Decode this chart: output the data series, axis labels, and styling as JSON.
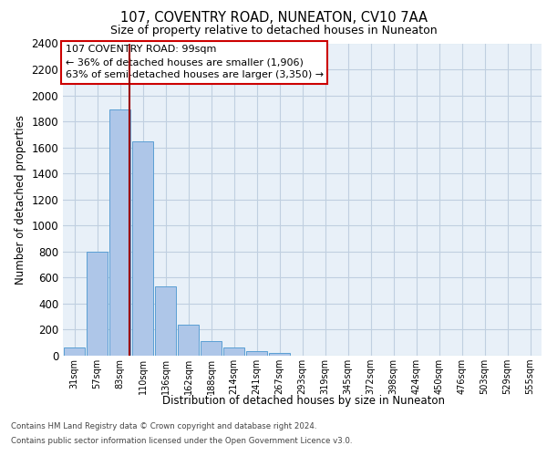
{
  "title": "107, COVENTRY ROAD, NUNEATON, CV10 7AA",
  "subtitle": "Size of property relative to detached houses in Nuneaton",
  "xlabel": "Distribution of detached houses by size in Nuneaton",
  "ylabel": "Number of detached properties",
  "categories": [
    "31sqm",
    "57sqm",
    "83sqm",
    "110sqm",
    "136sqm",
    "162sqm",
    "188sqm",
    "214sqm",
    "241sqm",
    "267sqm",
    "293sqm",
    "319sqm",
    "345sqm",
    "372sqm",
    "398sqm",
    "424sqm",
    "450sqm",
    "476sqm",
    "503sqm",
    "529sqm",
    "555sqm"
  ],
  "values": [
    60,
    800,
    1890,
    1650,
    535,
    240,
    110,
    60,
    35,
    20,
    0,
    0,
    0,
    0,
    0,
    0,
    0,
    0,
    0,
    0,
    0
  ],
  "bar_color": "#aec6e8",
  "bar_edge_color": "#5a9fd4",
  "grid_color": "#c0cfe0",
  "background_color": "#e8f0f8",
  "annotation_text": "107 COVENTRY ROAD: 99sqm\n← 36% of detached houses are smaller (1,906)\n63% of semi-detached houses are larger (3,350) →",
  "annotation_box_color": "#ffffff",
  "annotation_border_color": "#cc0000",
  "vline_x_index": 2.43,
  "ylim": [
    0,
    2400
  ],
  "yticks": [
    0,
    200,
    400,
    600,
    800,
    1000,
    1200,
    1400,
    1600,
    1800,
    2000,
    2200,
    2400
  ],
  "footer_line1": "Contains HM Land Registry data © Crown copyright and database right 2024.",
  "footer_line2": "Contains public sector information licensed under the Open Government Licence v3.0."
}
